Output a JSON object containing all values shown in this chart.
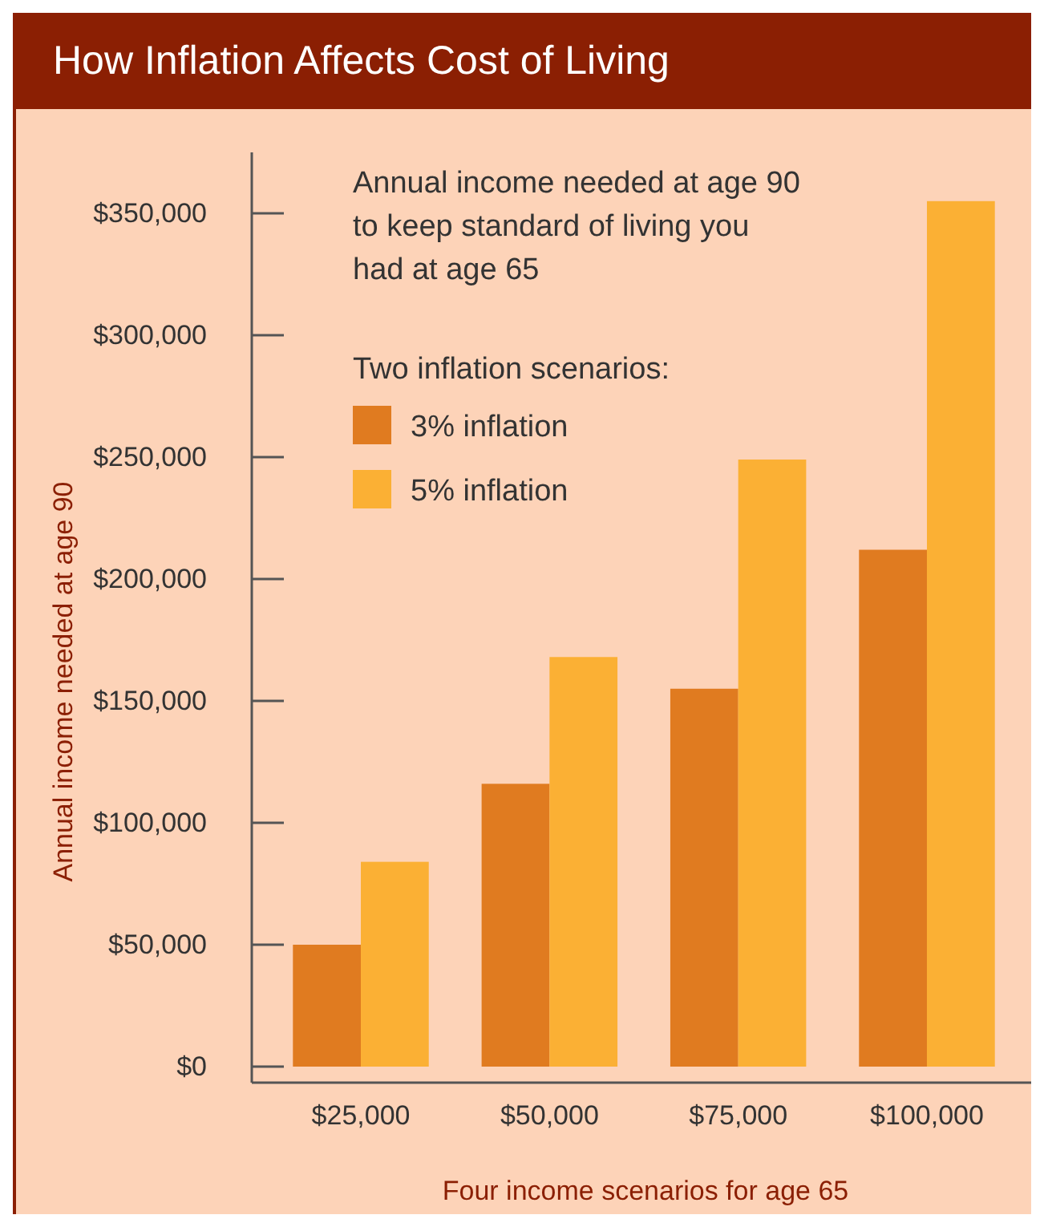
{
  "chart_data": {
    "type": "bar",
    "title": "How Inflation Affects Cost of Living",
    "xlabel": "Four income scenarios for age 65",
    "ylabel": "Annual income needed at age 90",
    "annotations": [
      "Annual income needed at age 90 to keep standard of living you had at age 65"
    ],
    "legend_title": "Two inflation scenarios:",
    "legend": "top",
    "categories": [
      "$25,000",
      "$50,000",
      "$75,000",
      "$100,000"
    ],
    "series": [
      {
        "name": "3% inflation",
        "color": "#e07b20",
        "values": [
          50000,
          116000,
          155000,
          212000
        ]
      },
      {
        "name": "5% inflation",
        "color": "#fbb034",
        "values": [
          84000,
          168000,
          249000,
          355000
        ]
      }
    ],
    "ylim": [
      0,
      375000
    ],
    "yticks": [
      {
        "value": 0,
        "label": "$0"
      },
      {
        "value": 50000,
        "label": "$50,000"
      },
      {
        "value": 100000,
        "label": "$100,000"
      },
      {
        "value": 150000,
        "label": "$150,000"
      },
      {
        "value": 200000,
        "label": "$200,000"
      },
      {
        "value": 250000,
        "label": "$250,000"
      },
      {
        "value": 300000,
        "label": "$300,000"
      },
      {
        "value": 350000,
        "label": "$350,000"
      }
    ],
    "grid": false
  }
}
